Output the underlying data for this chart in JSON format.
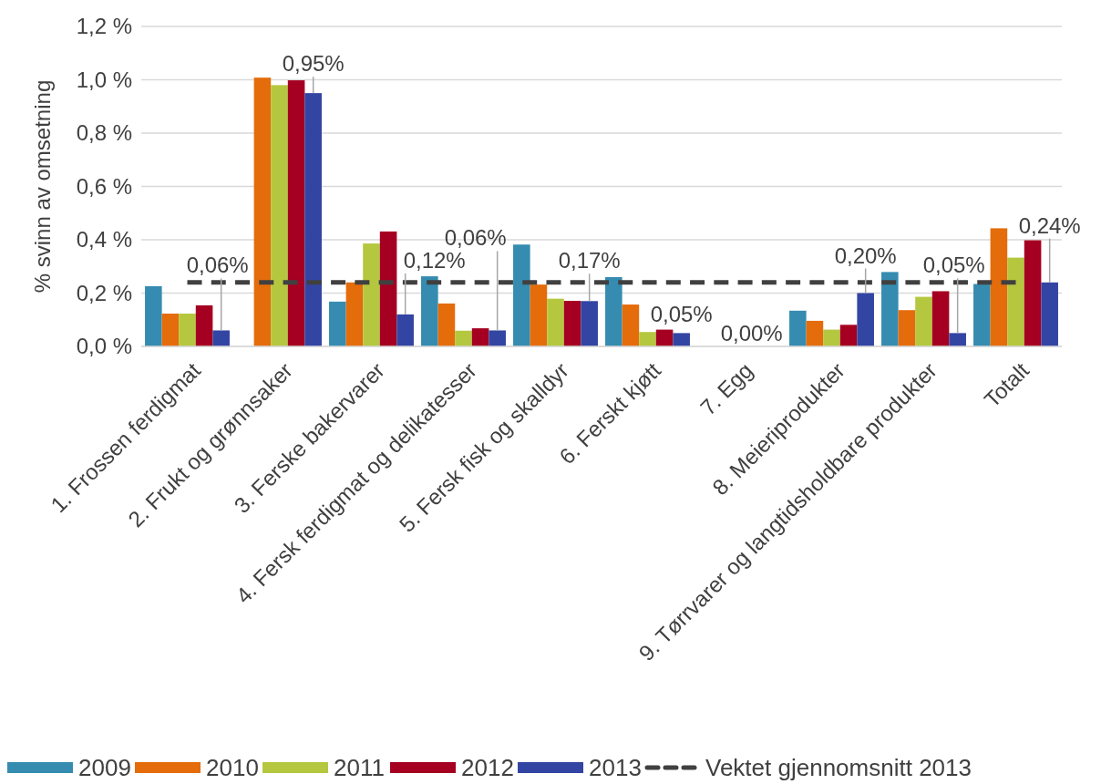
{
  "chart_data": {
    "type": "bar",
    "ylabel": "% svinn av omsetning",
    "categories": [
      "1. Frossen ferdigmat",
      "2. Frukt og grønnsaker",
      "3. Ferske bakervarer",
      "4. Fersk ferdigmat og delikatesser",
      "5. Fersk fisk og skalldyr",
      "6. Ferskt kjøtt",
      "7. Egg",
      "8. Meieriprodukter",
      "9. Tørrvarer og langtidsholdbare produkter",
      "Totalt"
    ],
    "series": [
      {
        "name": "2009",
        "color": "#358cb0",
        "values": [
          0.226,
          0,
          0.168,
          0.263,
          0.382,
          0.26,
          0,
          0.134,
          0.279,
          0.234
        ]
      },
      {
        "name": "2010",
        "color": "#e46c0a",
        "values": [
          0.123,
          1.008,
          0.24,
          0.161,
          0.232,
          0.157,
          0,
          0.096,
          0.136,
          0.443
        ]
      },
      {
        "name": "2011",
        "color": "#b5c73f",
        "values": [
          0.123,
          0.98,
          0.386,
          0.059,
          0.179,
          0.054,
          0,
          0.063,
          0.186,
          0.333
        ]
      },
      {
        "name": "2012",
        "color": "#a50021",
        "values": [
          0.154,
          0.998,
          0.431,
          0.068,
          0.171,
          0.063,
          0,
          0.081,
          0.207,
          0.398
        ]
      },
      {
        "name": "2013",
        "color": "#3345a3",
        "values": [
          0.06,
          0.95,
          0.12,
          0.06,
          0.17,
          0.05,
          0,
          0.2,
          0.05,
          0.24
        ],
        "value_labels": [
          "0,06%",
          "0,95%",
          "0,12%",
          "0,06%",
          "0,17%",
          "0,05%",
          "0,00%",
          "0,20%",
          "0,05%",
          "0,24%"
        ]
      },
      {
        "name": "Vektet gjennomsnitt 2013",
        "type": "line",
        "line_style": "dashed",
        "color": "#404040",
        "values": [
          0.24,
          0.24,
          0.24,
          0.24,
          0.24,
          0.24,
          0.24,
          0.24,
          0.24,
          0.24
        ]
      }
    ],
    "ylim": [
      0,
      1.2
    ],
    "yticks": [
      {
        "value": 0,
        "label": "0,0 %"
      },
      {
        "value": 0.2,
        "label": "0,2 %"
      },
      {
        "value": 0.4,
        "label": "0,4 %"
      },
      {
        "value": 0.6,
        "label": "0,6 %"
      },
      {
        "value": 0.8,
        "label": "0,8 %"
      },
      {
        "value": 1,
        "label": "1,0 %"
      },
      {
        "value": 1.2,
        "label": "1,2 %"
      }
    ],
    "grid": "y",
    "legend": "bottom"
  }
}
